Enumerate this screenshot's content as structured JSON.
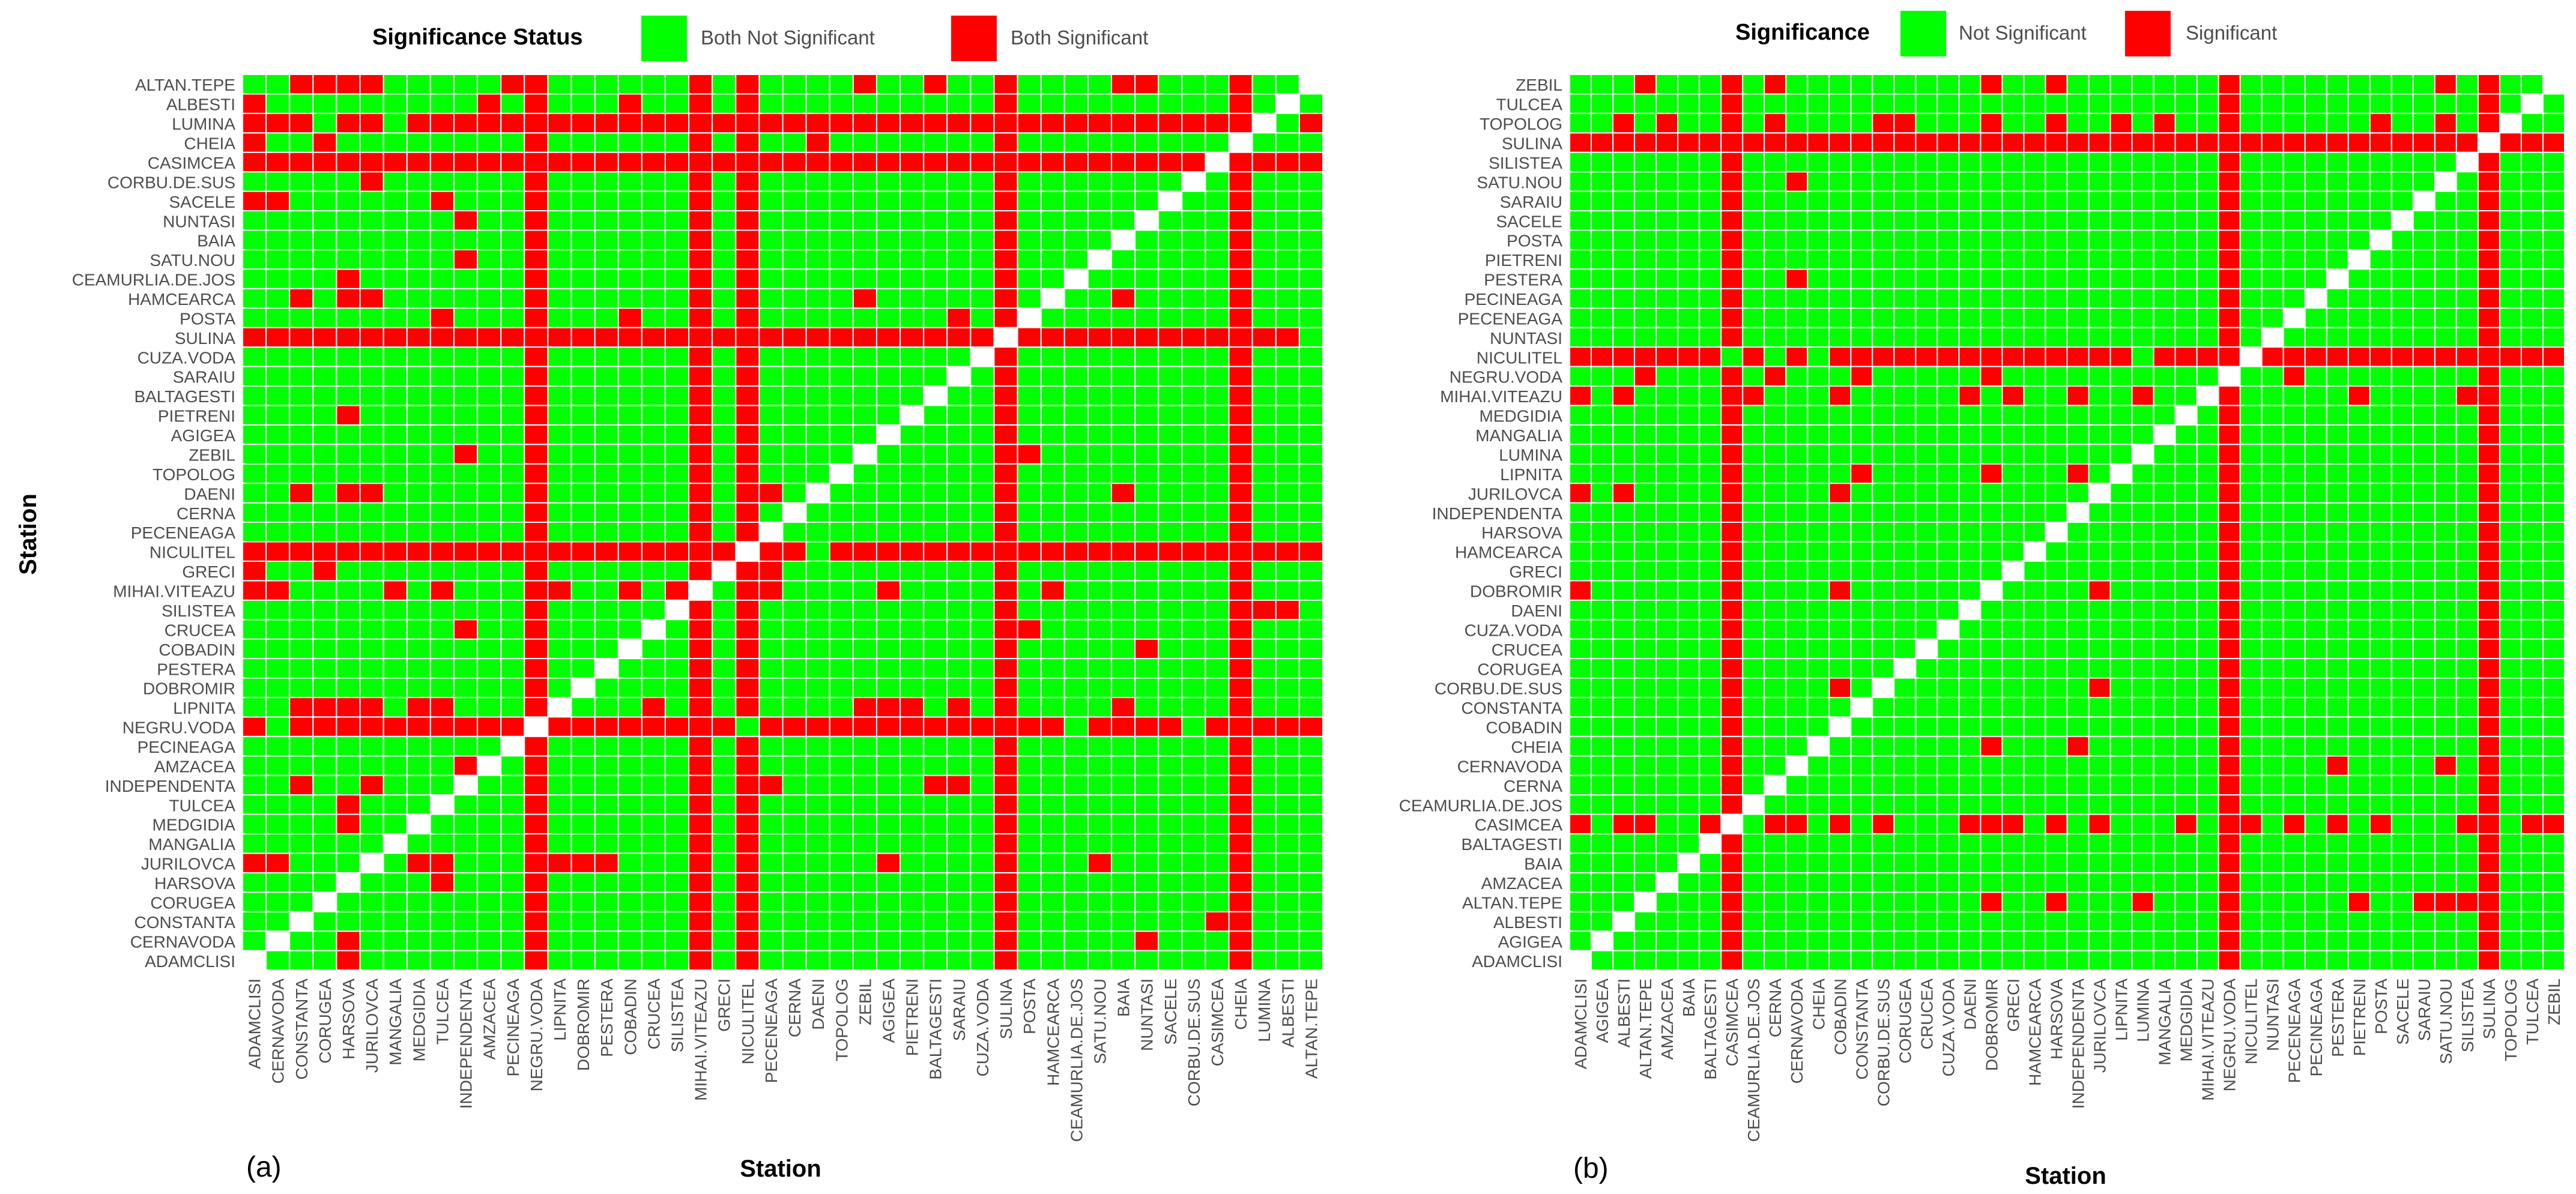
{
  "colors": {
    "not_sig": "#00ff00",
    "sig": "#ff0000",
    "grid": "#ffffff"
  },
  "chart_data": [
    {
      "type": "heatmap",
      "panel_label": "(a)",
      "xlabel": "Station",
      "ylabel": "Station",
      "legend": {
        "title": "Significance Status",
        "not_sig": "Both Not Significant",
        "sig": "Both Significant"
      },
      "stations": [
        "ADAMCLISI",
        "CERNAVODA",
        "CONSTANTA",
        "CORUGEA",
        "HARSOVA",
        "JURILOVCA",
        "MANGALIA",
        "MEDGIDIA",
        "TULCEA",
        "INDEPENDENTA",
        "AMZACEA",
        "PECINEAGA",
        "NEGRU.VODA",
        "LIPNITA",
        "DOBROMIR",
        "PESTERA",
        "COBADIN",
        "CRUCEA",
        "SILISTEA",
        "MIHAI.VITEAZU",
        "GRECI",
        "NICULITEL",
        "PECENEAGA",
        "CERNA",
        "DAENI",
        "TOPOLOG",
        "ZEBIL",
        "AGIGEA",
        "PIETRENI",
        "BALTAGESTI",
        "SARAIU",
        "CUZA.VODA",
        "SULINA",
        "POSTA",
        "HAMCEARCA",
        "CEAMURLIA.DE.JOS",
        "SATU.NOU",
        "BAIA",
        "NUNTASI",
        "SACELE",
        "CORBU.DE.SUS",
        "CASIMCEA",
        "CHEIA",
        "LUMINA",
        "ALBESTI",
        "ALTAN.TEPE"
      ],
      "sig_rows": [
        "LUMINA",
        "CASIMCEA",
        "SULINA",
        "NICULITEL",
        "NEGRU.VODA"
      ],
      "sig_cols": [
        "NEGRU.VODA",
        "NICULITEL",
        "SULINA",
        "MIHAI.VITEAZU",
        "CHEIA"
      ],
      "sig_pairs": [
        [
          "ALTAN.TEPE",
          "CONSTANTA"
        ],
        [
          "ALTAN.TEPE",
          "CORUGEA"
        ],
        [
          "ALTAN.TEPE",
          "HARSOVA"
        ],
        [
          "ALTAN.TEPE",
          "JURILOVCA"
        ],
        [
          "ALTAN.TEPE",
          "PECINEAGA"
        ],
        [
          "ALTAN.TEPE",
          "ZEBIL"
        ],
        [
          "ALTAN.TEPE",
          "BALTAGESTI"
        ],
        [
          "ALTAN.TEPE",
          "BAIA"
        ],
        [
          "ALTAN.TEPE",
          "NUNTASI"
        ],
        [
          "ALBESTI",
          "ADAMCLISI"
        ],
        [
          "ALBESTI",
          "AMZACEA"
        ],
        [
          "ALBESTI",
          "COBADIN"
        ],
        [
          "CHEIA",
          "ADAMCLISI"
        ],
        [
          "CHEIA",
          "CORUGEA"
        ],
        [
          "CHEIA",
          "DAENI"
        ],
        [
          "CORBU.DE.SUS",
          "JURILOVCA"
        ],
        [
          "SACELE",
          "ADAMCLISI"
        ],
        [
          "SACELE",
          "CERNAVODA"
        ],
        [
          "SACELE",
          "TULCEA"
        ],
        [
          "NUNTASI",
          "INDEPENDENTA"
        ],
        [
          "CEAMURLIA.DE.JOS",
          "HARSOVA"
        ],
        [
          "SATU.NOU",
          "INDEPENDENTA"
        ],
        [
          "HAMCEARCA",
          "CONSTANTA"
        ],
        [
          "HAMCEARCA",
          "HARSOVA"
        ],
        [
          "HAMCEARCA",
          "JURILOVCA"
        ],
        [
          "HAMCEARCA",
          "ZEBIL"
        ],
        [
          "HAMCEARCA",
          "BAIA"
        ],
        [
          "POSTA",
          "TULCEA"
        ],
        [
          "POSTA",
          "COBADIN"
        ],
        [
          "POSTA",
          "SARAIU"
        ],
        [
          "DAENI",
          "CONSTANTA"
        ],
        [
          "DAENI",
          "HARSOVA"
        ],
        [
          "DAENI",
          "JURILOVCA"
        ],
        [
          "DAENI",
          "PECENEAGA"
        ],
        [
          "DAENI",
          "BAIA"
        ],
        [
          "ZEBIL",
          "INDEPENDENTA"
        ],
        [
          "ZEBIL",
          "POSTA"
        ],
        [
          "PIETRENI",
          "HARSOVA"
        ],
        [
          "MIHAI.VITEAZU",
          "ADAMCLISI"
        ],
        [
          "MIHAI.VITEAZU",
          "CERNAVODA"
        ],
        [
          "MIHAI.VITEAZU",
          "MANGALIA"
        ],
        [
          "MIHAI.VITEAZU",
          "TULCEA"
        ],
        [
          "MIHAI.VITEAZU",
          "LIPNITA"
        ],
        [
          "MIHAI.VITEAZU",
          "COBADIN"
        ],
        [
          "MIHAI.VITEAZU",
          "SILISTEA"
        ],
        [
          "MIHAI.VITEAZU",
          "PECENEAGA"
        ],
        [
          "MIHAI.VITEAZU",
          "AGIGEA"
        ],
        [
          "MIHAI.VITEAZU",
          "HAMCEARCA"
        ],
        [
          "GRECI",
          "ADAMCLISI"
        ],
        [
          "GRECI",
          "CORUGEA"
        ],
        [
          "GRECI",
          "PECENEAGA"
        ],
        [
          "SILISTEA",
          "LUMINA"
        ],
        [
          "SILISTEA",
          "ALBESTI"
        ],
        [
          "CRUCEA",
          "INDEPENDENTA"
        ],
        [
          "CRUCEA",
          "POSTA"
        ],
        [
          "COBADIN",
          "NUNTASI"
        ],
        [
          "LIPNITA",
          "CONSTANTA"
        ],
        [
          "LIPNITA",
          "CORUGEA"
        ],
        [
          "LIPNITA",
          "HARSOVA"
        ],
        [
          "LIPNITA",
          "JURILOVCA"
        ],
        [
          "LIPNITA",
          "MEDGIDIA"
        ],
        [
          "LIPNITA",
          "TULCEA"
        ],
        [
          "LIPNITA",
          "CRUCEA"
        ],
        [
          "LIPNITA",
          "ZEBIL"
        ],
        [
          "LIPNITA",
          "AGIGEA"
        ],
        [
          "LIPNITA",
          "PIETRENI"
        ],
        [
          "LIPNITA",
          "SARAIU"
        ],
        [
          "LIPNITA",
          "BAIA"
        ],
        [
          "INDEPENDENTA",
          "CONSTANTA"
        ],
        [
          "INDEPENDENTA",
          "JURILOVCA"
        ],
        [
          "INDEPENDENTA",
          "PECENEAGA"
        ],
        [
          "INDEPENDENTA",
          "BALTAGESTI"
        ],
        [
          "INDEPENDENTA",
          "SARAIU"
        ],
        [
          "AMZACEA",
          "INDEPENDENTA"
        ],
        [
          "TULCEA",
          "HARSOVA"
        ],
        [
          "MEDGIDIA",
          "HARSOVA"
        ],
        [
          "JURILOVCA",
          "ADAMCLISI"
        ],
        [
          "JURILOVCA",
          "CERNAVODA"
        ],
        [
          "JURILOVCA",
          "MEDGIDIA"
        ],
        [
          "JURILOVCA",
          "TULCEA"
        ],
        [
          "JURILOVCA",
          "NEGRU.VODA"
        ],
        [
          "JURILOVCA",
          "LIPNITA"
        ],
        [
          "JURILOVCA",
          "DOBROMIR"
        ],
        [
          "JURILOVCA",
          "PESTERA"
        ],
        [
          "JURILOVCA",
          "AGIGEA"
        ],
        [
          "JURILOVCA",
          "SATU.NOU"
        ],
        [
          "HARSOVA",
          "TULCEA"
        ],
        [
          "HARSOVA",
          "MIHAI.VITEAZU"
        ],
        [
          "CONSTANTA",
          "CASIMCEA"
        ],
        [
          "CERNAVODA",
          "HARSOVA"
        ],
        [
          "CERNAVODA",
          "NUNTASI"
        ],
        [
          "ADAMCLISI",
          "HARSOVA"
        ]
      ],
      "ns_pairs": [
        [
          "LUMINA",
          "CORUGEA"
        ],
        [
          "LUMINA",
          "MANGALIA"
        ],
        [
          "LUMINA",
          "ALBESTI"
        ],
        [
          "SULINA",
          "ALTAN.TEPE"
        ],
        [
          "NICULITEL",
          "DAENI"
        ],
        [
          "NEGRU.VODA",
          "CERNAVODA"
        ],
        [
          "NEGRU.VODA",
          "NICULITEL"
        ],
        [
          "NEGRU.VODA",
          "CEAMURLIA.DE.JOS"
        ],
        [
          "NEGRU.VODA",
          "CORBU.DE.SUS"
        ]
      ]
    },
    {
      "type": "heatmap",
      "panel_label": "(b)",
      "xlabel": "Station",
      "ylabel": "",
      "legend": {
        "title": "Significance",
        "not_sig": "Not Significant",
        "sig": "Significant"
      },
      "stations": [
        "ADAMCLISI",
        "AGIGEA",
        "ALBESTI",
        "ALTAN.TEPE",
        "AMZACEA",
        "BAIA",
        "BALTAGESTI",
        "CASIMCEA",
        "CEAMURLIA.DE.JOS",
        "CERNA",
        "CERNAVODA",
        "CHEIA",
        "COBADIN",
        "CONSTANTA",
        "CORBU.DE.SUS",
        "CORUGEA",
        "CRUCEA",
        "CUZA.VODA",
        "DAENI",
        "DOBROMIR",
        "GRECI",
        "HAMCEARCA",
        "HARSOVA",
        "INDEPENDENTA",
        "JURILOVCA",
        "LIPNITA",
        "LUMINA",
        "MANGALIA",
        "MEDGIDIA",
        "MIHAI.VITEAZU",
        "NEGRU.VODA",
        "NICULITEL",
        "NUNTASI",
        "PECENEAGA",
        "PECINEAGA",
        "PESTERA",
        "PIETRENI",
        "POSTA",
        "SACELE",
        "SARAIU",
        "SATU.NOU",
        "SILISTEA",
        "SULINA",
        "TOPOLOG",
        "TULCEA",
        "ZEBIL"
      ],
      "sig_rows": [
        "SULINA",
        "NICULITEL",
        "CASIMCEA"
      ],
      "sig_cols": [
        "CASIMCEA",
        "NEGRU.VODA",
        "SULINA"
      ],
      "sig_pairs": [
        [
          "ZEBIL",
          "ALTAN.TEPE"
        ],
        [
          "ZEBIL",
          "CERNA"
        ],
        [
          "ZEBIL",
          "DOBROMIR"
        ],
        [
          "ZEBIL",
          "HARSOVA"
        ],
        [
          "ZEBIL",
          "SATU.NOU"
        ],
        [
          "TULCEA",
          "SULINA"
        ],
        [
          "TOPOLOG",
          "ALBESTI"
        ],
        [
          "TOPOLOG",
          "AMZACEA"
        ],
        [
          "TOPOLOG",
          "CERNA"
        ],
        [
          "TOPOLOG",
          "CORBU.DE.SUS"
        ],
        [
          "TOPOLOG",
          "CORUGEA"
        ],
        [
          "TOPOLOG",
          "DOBROMIR"
        ],
        [
          "TOPOLOG",
          "HARSOVA"
        ],
        [
          "TOPOLOG",
          "LIPNITA"
        ],
        [
          "TOPOLOG",
          "MANGALIA"
        ],
        [
          "TOPOLOG",
          "POSTA"
        ],
        [
          "TOPOLOG",
          "SATU.NOU"
        ],
        [
          "SATU.NOU",
          "CERNAVODA"
        ],
        [
          "PESTERA",
          "CERNAVODA"
        ],
        [
          "NEGRU.VODA",
          "ALTAN.TEPE"
        ],
        [
          "NEGRU.VODA",
          "CERNA"
        ],
        [
          "NEGRU.VODA",
          "CONSTANTA"
        ],
        [
          "NEGRU.VODA",
          "DOBROMIR"
        ],
        [
          "NEGRU.VODA",
          "PECENEAGA"
        ],
        [
          "MIHAI.VITEAZU",
          "ADAMCLISI"
        ],
        [
          "MIHAI.VITEAZU",
          "ALBESTI"
        ],
        [
          "MIHAI.VITEAZU",
          "CEAMURLIA.DE.JOS"
        ],
        [
          "MIHAI.VITEAZU",
          "COBADIN"
        ],
        [
          "MIHAI.VITEAZU",
          "DAENI"
        ],
        [
          "MIHAI.VITEAZU",
          "GRECI"
        ],
        [
          "MIHAI.VITEAZU",
          "INDEPENDENTA"
        ],
        [
          "MIHAI.VITEAZU",
          "LUMINA"
        ],
        [
          "MIHAI.VITEAZU",
          "PIETRENI"
        ],
        [
          "MIHAI.VITEAZU",
          "SILISTEA"
        ],
        [
          "LIPNITA",
          "CONSTANTA"
        ],
        [
          "LIPNITA",
          "DOBROMIR"
        ],
        [
          "LIPNITA",
          "INDEPENDENTA"
        ],
        [
          "JURILOVCA",
          "ADAMCLISI"
        ],
        [
          "JURILOVCA",
          "ALBESTI"
        ],
        [
          "JURILOVCA",
          "COBADIN"
        ],
        [
          "DOBROMIR",
          "ADAMCLISI"
        ],
        [
          "DOBROMIR",
          "COBADIN"
        ],
        [
          "DOBROMIR",
          "JURILOVCA"
        ],
        [
          "CORBU.DE.SUS",
          "COBADIN"
        ],
        [
          "CORBU.DE.SUS",
          "JURILOVCA"
        ],
        [
          "CHEIA",
          "DOBROMIR"
        ],
        [
          "CHEIA",
          "INDEPENDENTA"
        ],
        [
          "CERNAVODA",
          "PESTERA"
        ],
        [
          "CERNAVODA",
          "SATU.NOU"
        ],
        [
          "ALTAN.TEPE",
          "DOBROMIR"
        ],
        [
          "ALTAN.TEPE",
          "HARSOVA"
        ],
        [
          "ALTAN.TEPE",
          "LUMINA"
        ],
        [
          "ALTAN.TEPE",
          "PIETRENI"
        ],
        [
          "ALTAN.TEPE",
          "SARAIU"
        ],
        [
          "ALTAN.TEPE",
          "SATU.NOU"
        ],
        [
          "ALTAN.TEPE",
          "SILISTEA"
        ]
      ],
      "ns_pairs": [
        [
          "NICULITEL",
          "CASIMCEA"
        ],
        [
          "NICULITEL",
          "CERNA"
        ],
        [
          "NICULITEL",
          "CHEIA"
        ],
        [
          "NICULITEL",
          "LUMINA"
        ],
        [
          "CASIMCEA",
          "AGIGEA"
        ],
        [
          "CASIMCEA",
          "AMZACEA"
        ],
        [
          "CASIMCEA",
          "BAIA"
        ],
        [
          "CASIMCEA",
          "CEAMURLIA.DE.JOS"
        ],
        [
          "CASIMCEA",
          "CHEIA"
        ],
        [
          "CASIMCEA",
          "CONSTANTA"
        ],
        [
          "CASIMCEA",
          "CORUGEA"
        ],
        [
          "CASIMCEA",
          "CRUCEA"
        ],
        [
          "CASIMCEA",
          "CUZA.VODA"
        ],
        [
          "CASIMCEA",
          "HAMCEARCA"
        ],
        [
          "CASIMCEA",
          "INDEPENDENTA"
        ],
        [
          "CASIMCEA",
          "LIPNITA"
        ],
        [
          "CASIMCEA",
          "LUMINA"
        ],
        [
          "CASIMCEA",
          "MANGALIA"
        ],
        [
          "CASIMCEA",
          "MIHAI.VITEAZU"
        ],
        [
          "CASIMCEA",
          "NUNTASI"
        ],
        [
          "CASIMCEA",
          "PECINEAGA"
        ],
        [
          "CASIMCEA",
          "PIETRENI"
        ],
        [
          "CASIMCEA",
          "SACELE"
        ],
        [
          "CASIMCEA",
          "SARAIU"
        ],
        [
          "CASIMCEA",
          "SATU.NOU"
        ],
        [
          "CASIMCEA",
          "TOPOLOG"
        ]
      ]
    }
  ]
}
